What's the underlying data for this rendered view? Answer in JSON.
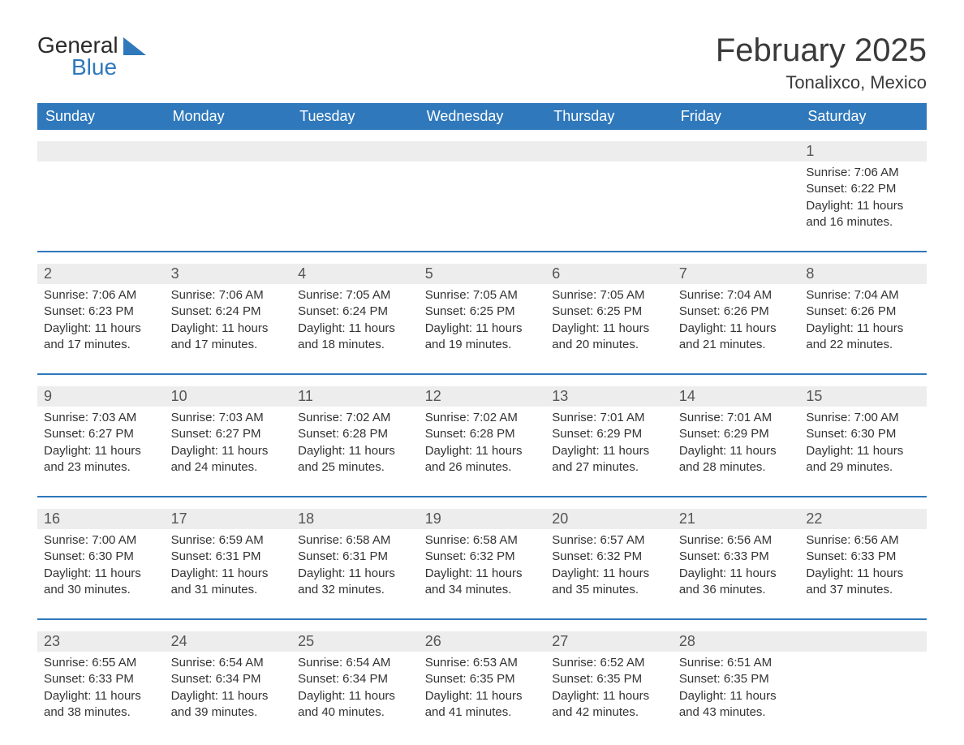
{
  "brand": {
    "part1": "General",
    "part2": "Blue",
    "sail_color": "#2f78bb",
    "text_color": "#2a2a2a"
  },
  "title": "February 2025",
  "location": "Tonalixco, Mexico",
  "colors": {
    "header_bg": "#2f78bb",
    "header_text": "#ffffff",
    "rule": "#2f78bb",
    "daynum_bg": "#ededed",
    "body_text": "#333333"
  },
  "typography": {
    "title_fontsize": 40,
    "location_fontsize": 22,
    "weekday_fontsize": 18,
    "daynum_fontsize": 18,
    "detail_fontsize": 15
  },
  "weekdays": [
    "Sunday",
    "Monday",
    "Tuesday",
    "Wednesday",
    "Thursday",
    "Friday",
    "Saturday"
  ],
  "weeks": [
    [
      null,
      null,
      null,
      null,
      null,
      null,
      {
        "day": "1",
        "sunrise": "Sunrise: 7:06 AM",
        "sunset": "Sunset: 6:22 PM",
        "daylight1": "Daylight: 11 hours",
        "daylight2": "and 16 minutes."
      }
    ],
    [
      {
        "day": "2",
        "sunrise": "Sunrise: 7:06 AM",
        "sunset": "Sunset: 6:23 PM",
        "daylight1": "Daylight: 11 hours",
        "daylight2": "and 17 minutes."
      },
      {
        "day": "3",
        "sunrise": "Sunrise: 7:06 AM",
        "sunset": "Sunset: 6:24 PM",
        "daylight1": "Daylight: 11 hours",
        "daylight2": "and 17 minutes."
      },
      {
        "day": "4",
        "sunrise": "Sunrise: 7:05 AM",
        "sunset": "Sunset: 6:24 PM",
        "daylight1": "Daylight: 11 hours",
        "daylight2": "and 18 minutes."
      },
      {
        "day": "5",
        "sunrise": "Sunrise: 7:05 AM",
        "sunset": "Sunset: 6:25 PM",
        "daylight1": "Daylight: 11 hours",
        "daylight2": "and 19 minutes."
      },
      {
        "day": "6",
        "sunrise": "Sunrise: 7:05 AM",
        "sunset": "Sunset: 6:25 PM",
        "daylight1": "Daylight: 11 hours",
        "daylight2": "and 20 minutes."
      },
      {
        "day": "7",
        "sunrise": "Sunrise: 7:04 AM",
        "sunset": "Sunset: 6:26 PM",
        "daylight1": "Daylight: 11 hours",
        "daylight2": "and 21 minutes."
      },
      {
        "day": "8",
        "sunrise": "Sunrise: 7:04 AM",
        "sunset": "Sunset: 6:26 PM",
        "daylight1": "Daylight: 11 hours",
        "daylight2": "and 22 minutes."
      }
    ],
    [
      {
        "day": "9",
        "sunrise": "Sunrise: 7:03 AM",
        "sunset": "Sunset: 6:27 PM",
        "daylight1": "Daylight: 11 hours",
        "daylight2": "and 23 minutes."
      },
      {
        "day": "10",
        "sunrise": "Sunrise: 7:03 AM",
        "sunset": "Sunset: 6:27 PM",
        "daylight1": "Daylight: 11 hours",
        "daylight2": "and 24 minutes."
      },
      {
        "day": "11",
        "sunrise": "Sunrise: 7:02 AM",
        "sunset": "Sunset: 6:28 PM",
        "daylight1": "Daylight: 11 hours",
        "daylight2": "and 25 minutes."
      },
      {
        "day": "12",
        "sunrise": "Sunrise: 7:02 AM",
        "sunset": "Sunset: 6:28 PM",
        "daylight1": "Daylight: 11 hours",
        "daylight2": "and 26 minutes."
      },
      {
        "day": "13",
        "sunrise": "Sunrise: 7:01 AM",
        "sunset": "Sunset: 6:29 PM",
        "daylight1": "Daylight: 11 hours",
        "daylight2": "and 27 minutes."
      },
      {
        "day": "14",
        "sunrise": "Sunrise: 7:01 AM",
        "sunset": "Sunset: 6:29 PM",
        "daylight1": "Daylight: 11 hours",
        "daylight2": "and 28 minutes."
      },
      {
        "day": "15",
        "sunrise": "Sunrise: 7:00 AM",
        "sunset": "Sunset: 6:30 PM",
        "daylight1": "Daylight: 11 hours",
        "daylight2": "and 29 minutes."
      }
    ],
    [
      {
        "day": "16",
        "sunrise": "Sunrise: 7:00 AM",
        "sunset": "Sunset: 6:30 PM",
        "daylight1": "Daylight: 11 hours",
        "daylight2": "and 30 minutes."
      },
      {
        "day": "17",
        "sunrise": "Sunrise: 6:59 AM",
        "sunset": "Sunset: 6:31 PM",
        "daylight1": "Daylight: 11 hours",
        "daylight2": "and 31 minutes."
      },
      {
        "day": "18",
        "sunrise": "Sunrise: 6:58 AM",
        "sunset": "Sunset: 6:31 PM",
        "daylight1": "Daylight: 11 hours",
        "daylight2": "and 32 minutes."
      },
      {
        "day": "19",
        "sunrise": "Sunrise: 6:58 AM",
        "sunset": "Sunset: 6:32 PM",
        "daylight1": "Daylight: 11 hours",
        "daylight2": "and 34 minutes."
      },
      {
        "day": "20",
        "sunrise": "Sunrise: 6:57 AM",
        "sunset": "Sunset: 6:32 PM",
        "daylight1": "Daylight: 11 hours",
        "daylight2": "and 35 minutes."
      },
      {
        "day": "21",
        "sunrise": "Sunrise: 6:56 AM",
        "sunset": "Sunset: 6:33 PM",
        "daylight1": "Daylight: 11 hours",
        "daylight2": "and 36 minutes."
      },
      {
        "day": "22",
        "sunrise": "Sunrise: 6:56 AM",
        "sunset": "Sunset: 6:33 PM",
        "daylight1": "Daylight: 11 hours",
        "daylight2": "and 37 minutes."
      }
    ],
    [
      {
        "day": "23",
        "sunrise": "Sunrise: 6:55 AM",
        "sunset": "Sunset: 6:33 PM",
        "daylight1": "Daylight: 11 hours",
        "daylight2": "and 38 minutes."
      },
      {
        "day": "24",
        "sunrise": "Sunrise: 6:54 AM",
        "sunset": "Sunset: 6:34 PM",
        "daylight1": "Daylight: 11 hours",
        "daylight2": "and 39 minutes."
      },
      {
        "day": "25",
        "sunrise": "Sunrise: 6:54 AM",
        "sunset": "Sunset: 6:34 PM",
        "daylight1": "Daylight: 11 hours",
        "daylight2": "and 40 minutes."
      },
      {
        "day": "26",
        "sunrise": "Sunrise: 6:53 AM",
        "sunset": "Sunset: 6:35 PM",
        "daylight1": "Daylight: 11 hours",
        "daylight2": "and 41 minutes."
      },
      {
        "day": "27",
        "sunrise": "Sunrise: 6:52 AM",
        "sunset": "Sunset: 6:35 PM",
        "daylight1": "Daylight: 11 hours",
        "daylight2": "and 42 minutes."
      },
      {
        "day": "28",
        "sunrise": "Sunrise: 6:51 AM",
        "sunset": "Sunset: 6:35 PM",
        "daylight1": "Daylight: 11 hours",
        "daylight2": "and 43 minutes."
      },
      null
    ]
  ]
}
